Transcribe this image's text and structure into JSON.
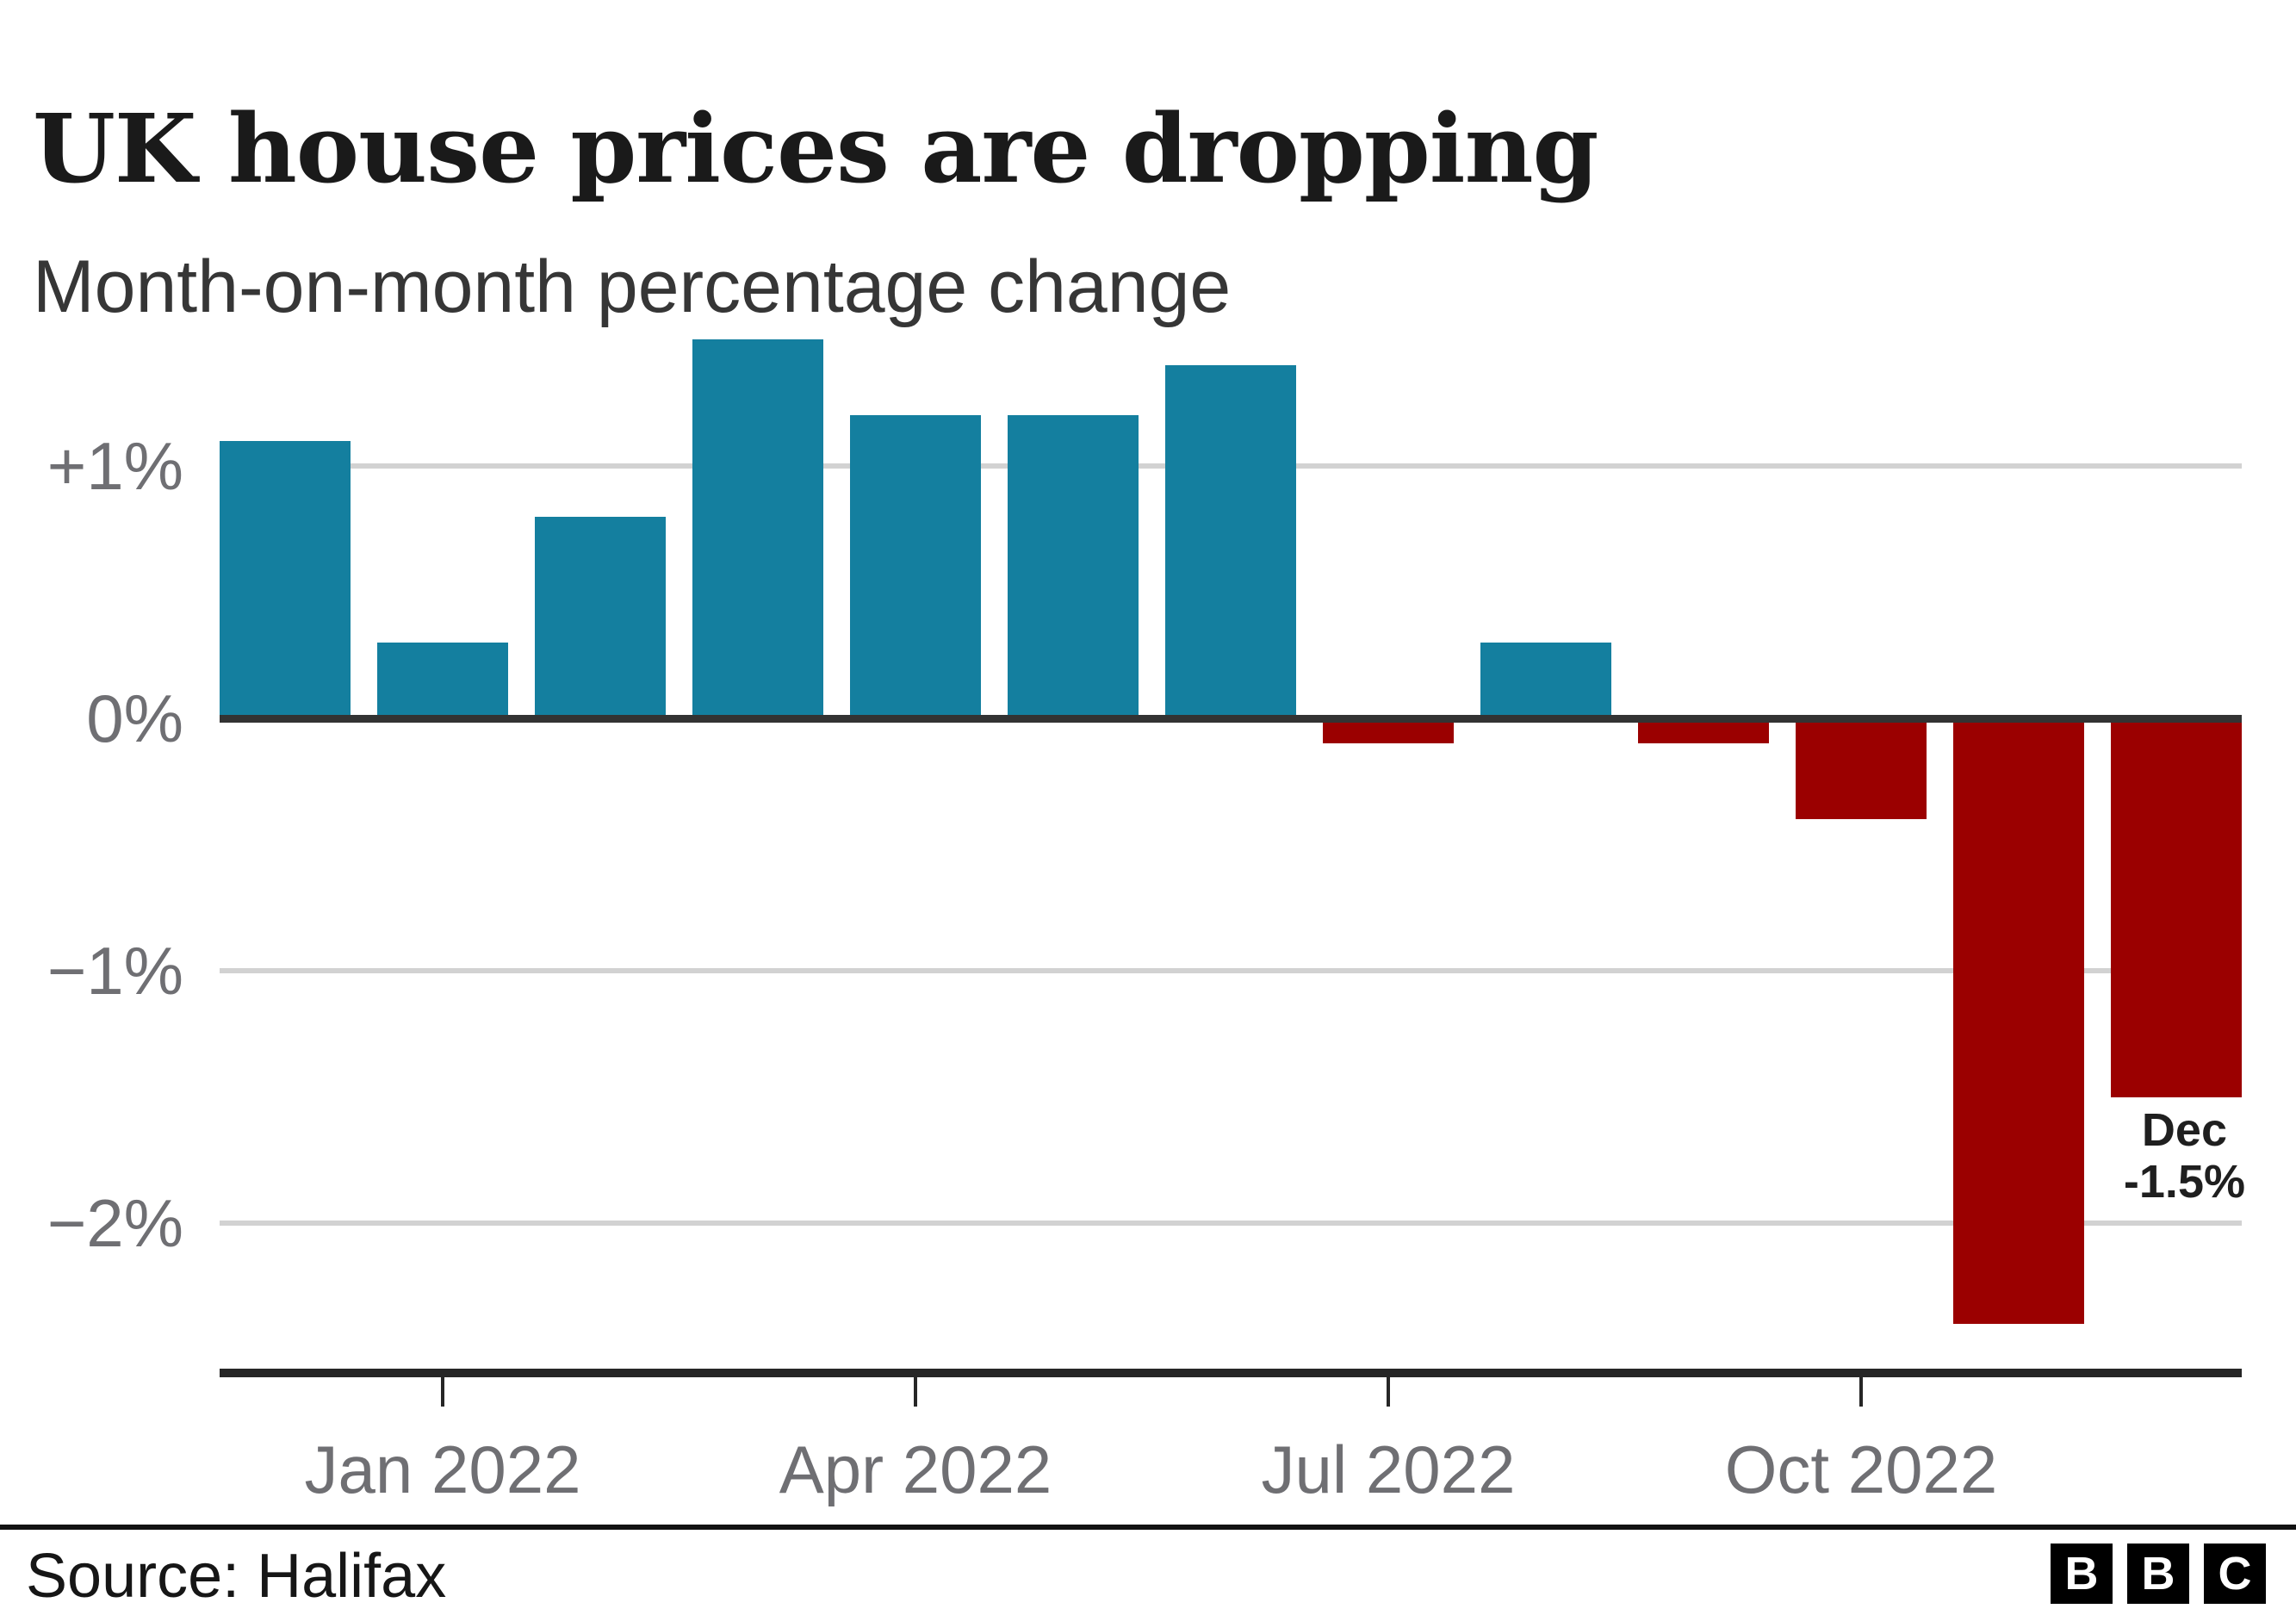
{
  "title": "UK house prices are dropping",
  "subtitle": "Month-on-month percentage change",
  "source_label": "Source: Halifax",
  "logo": {
    "letters": [
      "B",
      "B",
      "C"
    ]
  },
  "annotation": {
    "line1": "Dec",
    "line2": "-1.5%"
  },
  "colors": {
    "positive_bar": "#147f9f",
    "negative_bar": "#9b0000",
    "gridline": "#d2d2d2",
    "zero_line": "#333333",
    "axis_line": "#262626",
    "tick_label": "#6f6f73",
    "annotation_text": "#1f1f1f"
  },
  "chart_data": {
    "type": "bar",
    "title": "UK house prices are dropping",
    "subtitle": "Month-on-month percentage change",
    "ylabel": "Month-on-month percentage change",
    "xlabel": "",
    "categories": [
      "Dec 2021",
      "Jan 2022",
      "Feb 2022",
      "Mar 2022",
      "Apr 2022",
      "May 2022",
      "Jun 2022",
      "Jul 2022",
      "Aug 2022",
      "Sep 2022",
      "Oct 2022",
      "Nov 2022",
      "Dec 2022"
    ],
    "values": [
      1.1,
      0.3,
      0.8,
      1.5,
      1.2,
      1.2,
      1.4,
      -0.1,
      0.3,
      -0.1,
      -0.4,
      -2.4,
      -1.5
    ],
    "ylim": [
      -2.6,
      1.55
    ],
    "grid": "horizontal",
    "legend": "none",
    "y_ticks": [
      {
        "label": "+1%",
        "value": 1
      },
      {
        "label": "0%",
        "value": 0
      },
      {
        "label": "−1%",
        "value": -1
      },
      {
        "label": "−2%",
        "value": -2
      }
    ],
    "x_ticks": [
      {
        "label": "Jan 2022",
        "index": 1
      },
      {
        "label": "Apr 2022",
        "index": 4
      },
      {
        "label": "Jul 2022",
        "index": 7
      },
      {
        "label": "Oct 2022",
        "index": 10
      }
    ],
    "annotation": {
      "text": "Dec -1.5%",
      "category": "Dec 2022",
      "value": -1.5
    }
  }
}
